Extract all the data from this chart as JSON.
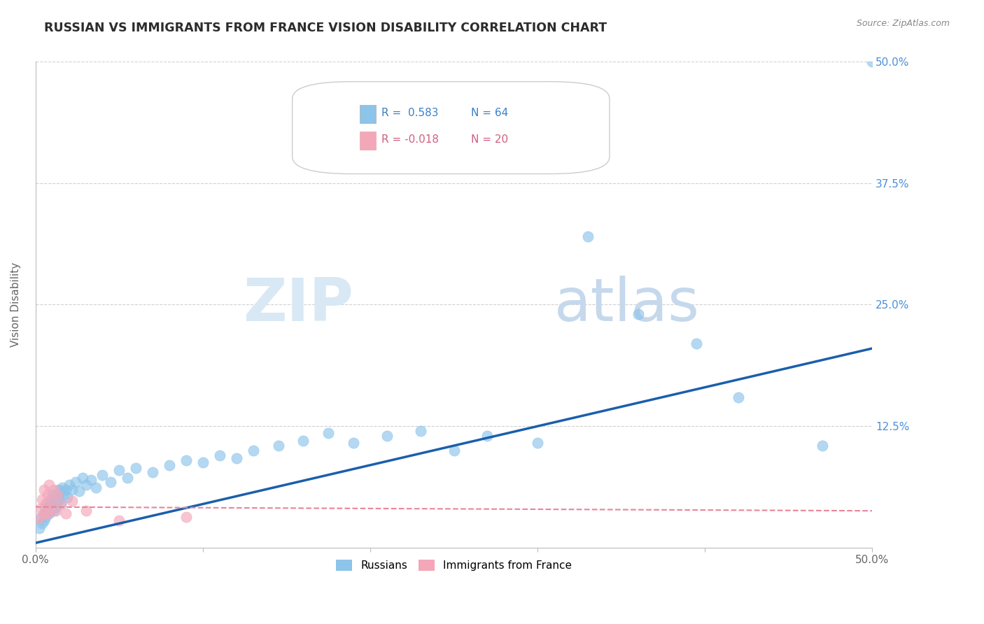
{
  "title": "RUSSIAN VS IMMIGRANTS FROM FRANCE VISION DISABILITY CORRELATION CHART",
  "source": "Source: ZipAtlas.com",
  "ylabel": "Vision Disability",
  "xlim": [
    0,
    0.5
  ],
  "ylim": [
    0,
    0.5
  ],
  "blue_color": "#8DC4EA",
  "pink_color": "#F4A7B9",
  "trend_blue": "#1A5FAB",
  "trend_pink": "#E8849A",
  "russians_x": [
    0.002,
    0.003,
    0.004,
    0.005,
    0.005,
    0.006,
    0.006,
    0.007,
    0.007,
    0.008,
    0.008,
    0.009,
    0.009,
    0.01,
    0.01,
    0.011,
    0.011,
    0.012,
    0.012,
    0.013,
    0.013,
    0.014,
    0.014,
    0.015,
    0.015,
    0.016,
    0.017,
    0.018,
    0.019,
    0.02,
    0.022,
    0.024,
    0.026,
    0.028,
    0.03,
    0.033,
    0.036,
    0.04,
    0.045,
    0.05,
    0.055,
    0.06,
    0.07,
    0.08,
    0.09,
    0.1,
    0.11,
    0.12,
    0.13,
    0.145,
    0.16,
    0.175,
    0.19,
    0.21,
    0.23,
    0.25,
    0.27,
    0.3,
    0.33,
    0.36,
    0.395,
    0.42,
    0.47,
    0.5
  ],
  "russians_y": [
    0.02,
    0.03,
    0.025,
    0.035,
    0.028,
    0.04,
    0.032,
    0.038,
    0.045,
    0.035,
    0.042,
    0.038,
    0.05,
    0.04,
    0.055,
    0.045,
    0.038,
    0.05,
    0.042,
    0.055,
    0.048,
    0.06,
    0.05,
    0.058,
    0.045,
    0.062,
    0.055,
    0.06,
    0.052,
    0.065,
    0.06,
    0.068,
    0.058,
    0.072,
    0.065,
    0.07,
    0.062,
    0.075,
    0.068,
    0.08,
    0.072,
    0.082,
    0.078,
    0.085,
    0.09,
    0.088,
    0.095,
    0.092,
    0.1,
    0.105,
    0.11,
    0.118,
    0.108,
    0.115,
    0.12,
    0.1,
    0.115,
    0.108,
    0.32,
    0.24,
    0.21,
    0.155,
    0.105,
    0.5
  ],
  "france_x": [
    0.002,
    0.003,
    0.004,
    0.005,
    0.005,
    0.006,
    0.007,
    0.007,
    0.008,
    0.009,
    0.01,
    0.011,
    0.012,
    0.013,
    0.015,
    0.018,
    0.022,
    0.03,
    0.05,
    0.09
  ],
  "france_y": [
    0.03,
    0.04,
    0.05,
    0.035,
    0.06,
    0.045,
    0.055,
    0.035,
    0.065,
    0.04,
    0.05,
    0.06,
    0.038,
    0.055,
    0.045,
    0.035,
    0.048,
    0.038,
    0.028,
    0.032
  ],
  "trend_blue_x0": 0.0,
  "trend_blue_y0": 0.005,
  "trend_blue_x1": 0.5,
  "trend_blue_y1": 0.205,
  "trend_pink_x0": 0.0,
  "trend_pink_y0": 0.042,
  "trend_pink_x1": 0.5,
  "trend_pink_y1": 0.038
}
